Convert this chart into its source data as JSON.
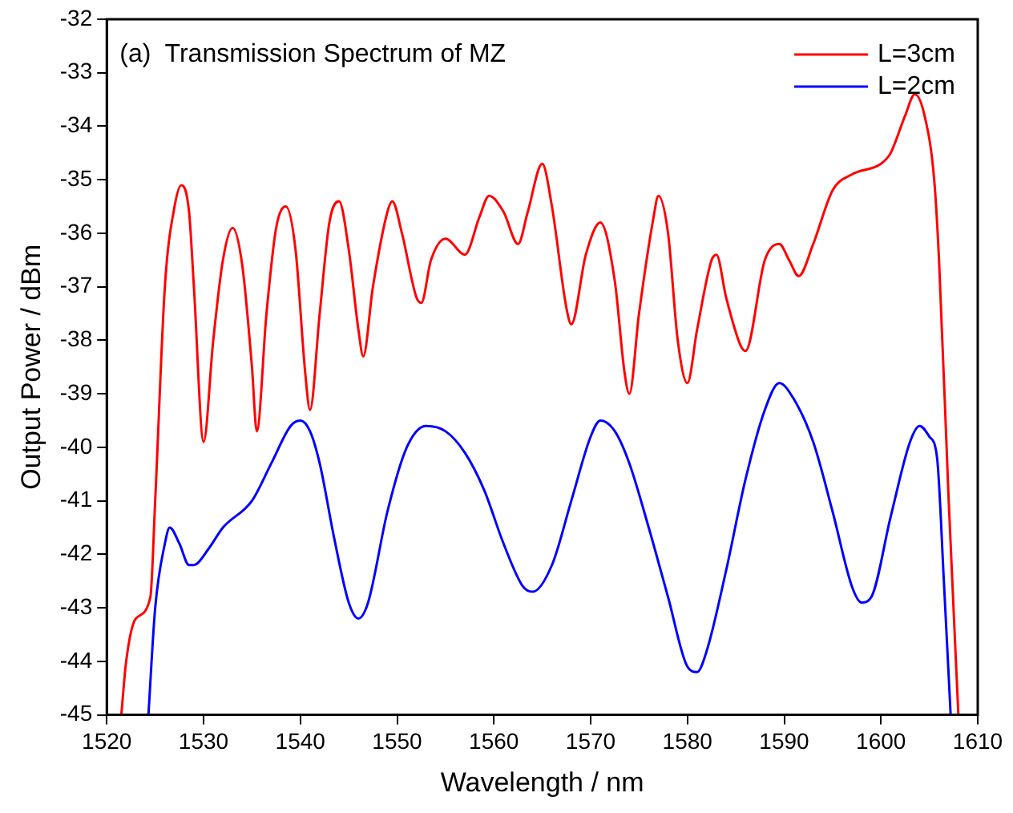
{
  "chart_data": {
    "type": "line",
    "xlabel": "Wavelength / nm",
    "ylabel": "Output Power / dBm",
    "annotations": [
      "(a)  Transmission Spectrum of MZ"
    ],
    "xlim": [
      1520,
      1610
    ],
    "xticks": [
      1520,
      1530,
      1540,
      1550,
      1560,
      1570,
      1580,
      1590,
      1600,
      1610
    ],
    "ylim": [
      -45,
      -32
    ],
    "yticks": [
      -45,
      -44,
      -43,
      -42,
      -41,
      -40,
      -39,
      -38,
      -37,
      -36,
      -35,
      -34,
      -33,
      -32
    ],
    "grid": false,
    "legend": "top right",
    "marker": "none",
    "line_style": "solid",
    "series": [
      {
        "name": "L=3cm",
        "color": "#ff0000",
        "x": [
          1521.5,
          1522,
          1523,
          1524.5,
          1525,
          1526,
          1527,
          1527.7,
          1528.5,
          1529,
          1530,
          1531,
          1532,
          1533,
          1534,
          1535,
          1535.5,
          1536.5,
          1537.5,
          1538.5,
          1539.5,
          1540.5,
          1541,
          1542,
          1543,
          1544,
          1545,
          1546,
          1546.5,
          1547.5,
          1549,
          1549.5,
          1550.5,
          1552,
          1552.5,
          1553.5,
          1555,
          1557,
          1558.5,
          1559.5,
          1561,
          1562.5,
          1563.5,
          1565,
          1566,
          1567.5,
          1568,
          1569.5,
          1571,
          1572.5,
          1573.5,
          1574,
          1575,
          1576.5,
          1577,
          1578,
          1579,
          1580,
          1581,
          1582.5,
          1583,
          1584,
          1585.5,
          1586,
          1588,
          1589.5,
          1590.5,
          1591.5,
          1593,
          1595,
          1597,
          1600,
          1601,
          1602.5,
          1603.5,
          1604.5,
          1605.5,
          1606,
          1607,
          1608
        ],
        "values": [
          -45,
          -44,
          -43.2,
          -42.8,
          -41,
          -37,
          -35.5,
          -35.1,
          -35.6,
          -37,
          -39.9,
          -38,
          -36.5,
          -35.9,
          -36.6,
          -38.5,
          -39.7,
          -37.5,
          -35.9,
          -35.5,
          -36.3,
          -38.6,
          -39.3,
          -37.5,
          -35.8,
          -35.4,
          -36.3,
          -37.8,
          -38.3,
          -37,
          -35.6,
          -35.4,
          -36,
          -37.2,
          -37.3,
          -36.5,
          -36.1,
          -36.4,
          -35.7,
          -35.3,
          -35.6,
          -36.2,
          -35.6,
          -34.7,
          -35.5,
          -37.4,
          -37.7,
          -36.4,
          -35.8,
          -36.9,
          -38.6,
          -39,
          -37.5,
          -35.7,
          -35.3,
          -36,
          -38,
          -38.8,
          -37.8,
          -36.5,
          -36.4,
          -37.2,
          -38.1,
          -38.2,
          -36.5,
          -36.2,
          -36.5,
          -36.8,
          -36.2,
          -35.2,
          -34.9,
          -34.7,
          -34.5,
          -33.8,
          -33.4,
          -33.8,
          -35,
          -36.5,
          -41,
          -45
        ]
      },
      {
        "name": "L=2cm",
        "color": "#0000ff",
        "x": [
          1524.3,
          1525,
          1526,
          1526.5,
          1527.5,
          1528.5,
          1529,
          1530.5,
          1532,
          1535,
          1537,
          1539,
          1540,
          1541,
          1542,
          1543.5,
          1545,
          1546,
          1547,
          1549,
          1551,
          1553,
          1555,
          1557,
          1559,
          1561,
          1563,
          1564,
          1566,
          1568,
          1570,
          1571,
          1572.5,
          1574,
          1576,
          1578,
          1580,
          1581,
          1582,
          1584,
          1586,
          1588,
          1589.5,
          1591,
          1593,
          1595,
          1597,
          1598,
          1599,
          1601,
          1603,
          1604,
          1605,
          1605.8,
          1606.5,
          1607.2
        ],
        "values": [
          -45,
          -43,
          -41.8,
          -41.5,
          -41.8,
          -42.2,
          -42.2,
          -41.9,
          -41.5,
          -41,
          -40.3,
          -39.6,
          -39.5,
          -39.7,
          -40.3,
          -41.7,
          -42.9,
          -43.2,
          -42.9,
          -41.2,
          -40,
          -39.6,
          -39.7,
          -40.1,
          -40.8,
          -41.8,
          -42.6,
          -42.7,
          -42.2,
          -41,
          -39.8,
          -39.5,
          -39.7,
          -40.3,
          -41.5,
          -42.8,
          -44.1,
          -44.2,
          -43.8,
          -42.3,
          -40.6,
          -39.3,
          -38.8,
          -39.1,
          -39.9,
          -41.2,
          -42.6,
          -42.9,
          -42.8,
          -41.3,
          -39.9,
          -39.6,
          -39.8,
          -40.2,
          -42.5,
          -45
        ]
      }
    ]
  }
}
